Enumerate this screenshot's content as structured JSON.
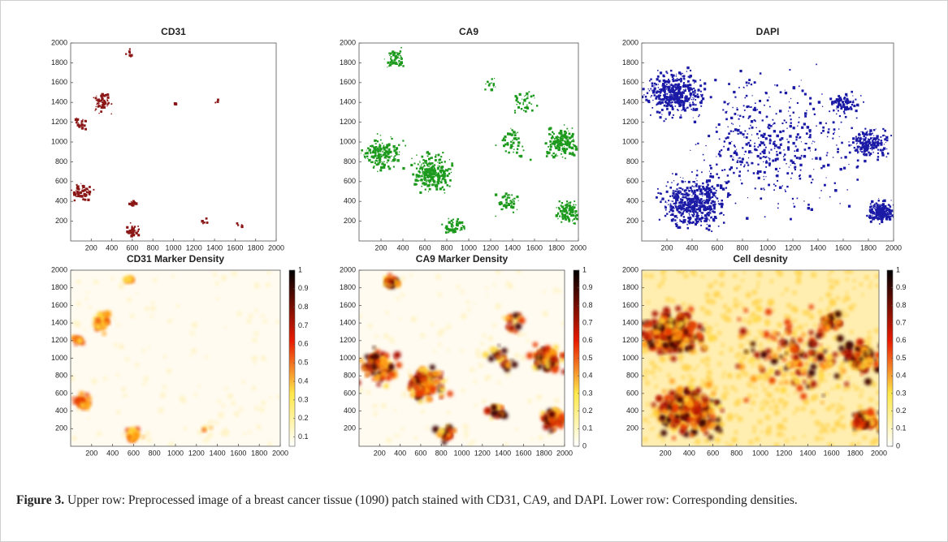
{
  "panels": [
    {
      "title": "CD31",
      "color": "#8b1616",
      "xlim": [
        0,
        2000
      ],
      "ylim": [
        0,
        2000
      ],
      "xticks": [
        200,
        400,
        600,
        800,
        1000,
        1200,
        1400,
        1600,
        1800,
        2000
      ],
      "yticks": [
        200,
        400,
        600,
        800,
        1000,
        1200,
        1400,
        1600,
        1800,
        2000
      ]
    },
    {
      "title": "CA9",
      "color": "#1d9a1d",
      "xlim": [
        0,
        2000
      ],
      "ylim": [
        0,
        2000
      ],
      "xticks": [
        200,
        400,
        600,
        800,
        1000,
        1200,
        1400,
        1600,
        1800,
        2000
      ],
      "yticks": [
        200,
        400,
        600,
        800,
        1000,
        1200,
        1400,
        1600,
        1800,
        2000
      ]
    },
    {
      "title": "DAPI",
      "color": "#1a1aa6",
      "xlim": [
        0,
        2000
      ],
      "ylim": [
        0,
        2000
      ],
      "xticks": [
        200,
        400,
        600,
        800,
        1000,
        1200,
        1400,
        1600,
        1800,
        2000
      ],
      "yticks": [
        200,
        400,
        600,
        800,
        1000,
        1200,
        1400,
        1600,
        1800,
        2000
      ]
    },
    {
      "title": "CD31 Marker Density",
      "xlim": [
        0,
        2000
      ],
      "ylim": [
        0,
        2000
      ],
      "xticks": [
        200,
        400,
        600,
        800,
        1000,
        1200,
        1400,
        1600,
        1800,
        2000
      ],
      "yticks": [
        200,
        400,
        600,
        800,
        1000,
        1200,
        1400,
        1600,
        1800,
        2000
      ],
      "clim": [
        0.05,
        1
      ],
      "cticks": [
        0.1,
        0.2,
        0.3,
        0.4,
        0.5,
        0.6,
        0.7,
        0.8,
        0.9,
        1
      ]
    },
    {
      "title": "CA9 Marker Density",
      "xlim": [
        0,
        2000
      ],
      "ylim": [
        0,
        2000
      ],
      "xticks": [
        200,
        400,
        600,
        800,
        1000,
        1200,
        1400,
        1600,
        1800,
        2000
      ],
      "yticks": [
        200,
        400,
        600,
        800,
        1000,
        1200,
        1400,
        1600,
        1800,
        2000
      ],
      "clim": [
        0,
        1
      ],
      "cticks": [
        0,
        0.1,
        0.2,
        0.3,
        0.4,
        0.5,
        0.6,
        0.7,
        0.8,
        0.9,
        1
      ]
    },
    {
      "title": "Cell desnity",
      "xlim": [
        0,
        2000
      ],
      "ylim": [
        0,
        2000
      ],
      "xticks": [
        200,
        400,
        600,
        800,
        1000,
        1200,
        1400,
        1600,
        1800,
        2000
      ],
      "yticks": [
        200,
        400,
        600,
        800,
        1000,
        1200,
        1400,
        1600,
        1800,
        2000
      ],
      "clim": [
        0,
        1
      ],
      "cticks": [
        0,
        0.1,
        0.2,
        0.3,
        0.4,
        0.5,
        0.6,
        0.7,
        0.8,
        0.9,
        1
      ]
    }
  ],
  "caption": {
    "label": "Figure 3.",
    "text": "Upper row: Preprocessed image of a breast cancer tissue (1090) patch stained with CD31, CA9, and DAPI. Lower row: Corresponding densities."
  }
}
